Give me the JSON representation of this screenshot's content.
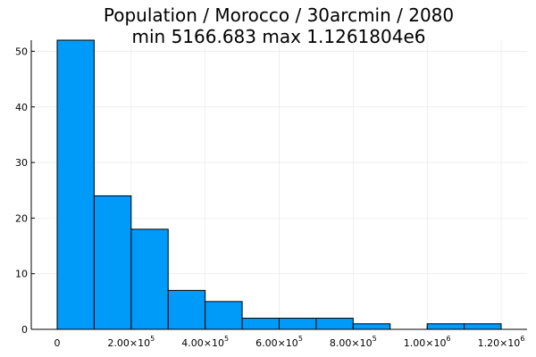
{
  "chart_data": {
    "type": "bar",
    "title": "Population / Morocco / 30arcmin / 2080",
    "subtitle": "min 5166.683  max 1.1261804e6",
    "xlabel": "",
    "ylabel": "",
    "grid": true,
    "legend": "none",
    "colors": {
      "bar_fill": "#009af9",
      "bar_stroke": "#000000",
      "grid": "#e5e5e5",
      "axis": "#000000"
    },
    "xlim": [
      -70000,
      1270000
    ],
    "ylim": [
      0,
      52
    ],
    "bin_edges": [
      0,
      100000,
      200000,
      300000,
      400000,
      500000,
      600000,
      700000,
      800000,
      900000,
      1000000,
      1100000,
      1200000
    ],
    "values": [
      52,
      24,
      18,
      7,
      5,
      2,
      2,
      2,
      1,
      0,
      1,
      1
    ],
    "x_ticks": [
      {
        "value": 0,
        "label": "0",
        "exp": ""
      },
      {
        "value": 200000,
        "label": "2.00×10",
        "exp": "5"
      },
      {
        "value": 400000,
        "label": "4.00×10",
        "exp": "5"
      },
      {
        "value": 600000,
        "label": "6.00×10",
        "exp": "5"
      },
      {
        "value": 800000,
        "label": "8.00×10",
        "exp": "5"
      },
      {
        "value": 1000000,
        "label": "1.00×10",
        "exp": "6"
      },
      {
        "value": 1200000,
        "label": "1.20×10",
        "exp": "6"
      }
    ],
    "y_ticks": [
      {
        "value": 0,
        "label": "0"
      },
      {
        "value": 10,
        "label": "10"
      },
      {
        "value": 20,
        "label": "20"
      },
      {
        "value": 30,
        "label": "30"
      },
      {
        "value": 40,
        "label": "40"
      },
      {
        "value": 50,
        "label": "50"
      }
    ]
  }
}
